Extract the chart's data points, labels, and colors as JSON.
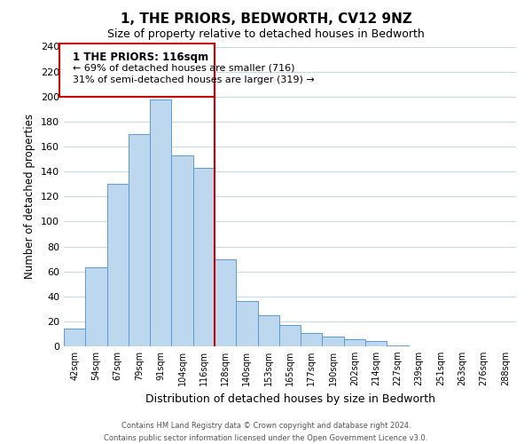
{
  "title": "1, THE PRIORS, BEDWORTH, CV12 9NZ",
  "subtitle": "Size of property relative to detached houses in Bedworth",
  "xlabel": "Distribution of detached houses by size in Bedworth",
  "ylabel": "Number of detached properties",
  "bar_labels": [
    "42sqm",
    "54sqm",
    "67sqm",
    "79sqm",
    "91sqm",
    "104sqm",
    "116sqm",
    "128sqm",
    "140sqm",
    "153sqm",
    "165sqm",
    "177sqm",
    "190sqm",
    "202sqm",
    "214sqm",
    "227sqm",
    "239sqm",
    "251sqm",
    "263sqm",
    "276sqm",
    "288sqm"
  ],
  "bar_values": [
    14,
    63,
    130,
    170,
    198,
    153,
    143,
    70,
    36,
    25,
    17,
    11,
    8,
    6,
    4,
    1,
    0,
    0,
    0,
    0,
    0
  ],
  "bar_color": "#bdd7ee",
  "bar_edge_color": "#5b9bd5",
  "vline_index": 6,
  "vline_color": "#cc0000",
  "ylim": [
    0,
    240
  ],
  "yticks": [
    0,
    20,
    40,
    60,
    80,
    100,
    120,
    140,
    160,
    180,
    200,
    220,
    240
  ],
  "annotation_title": "1 THE PRIORS: 116sqm",
  "annotation_line1": "← 69% of detached houses are smaller (716)",
  "annotation_line2": "31% of semi-detached houses are larger (319) →",
  "annotation_box_color": "#ffffff",
  "annotation_box_edge": "#cc0000",
  "footer1": "Contains HM Land Registry data © Crown copyright and database right 2024.",
  "footer2": "Contains public sector information licensed under the Open Government Licence v3.0.",
  "background_color": "#ffffff",
  "grid_color": "#c8d8e8"
}
